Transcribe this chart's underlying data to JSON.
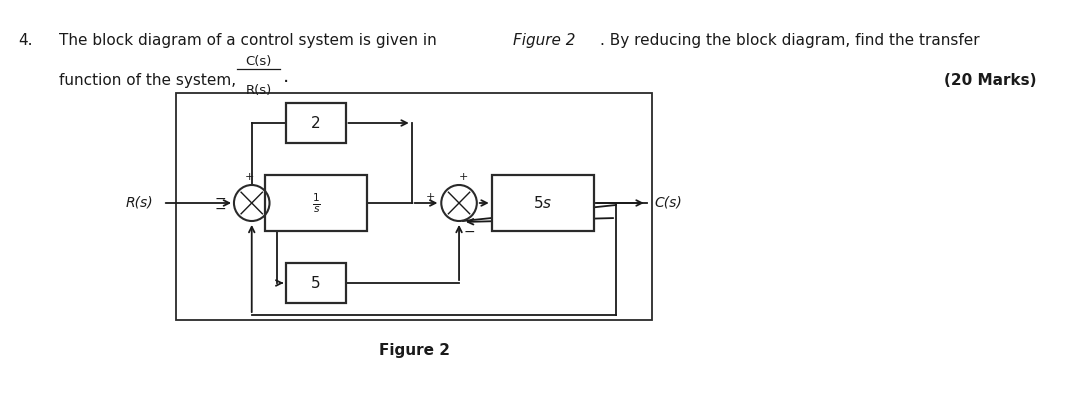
{
  "title_text": "The block diagram of a control system is given in",
  "title_italic": "Figure 2",
  "title_text2": ". By reducing the block diagram, find the transfer",
  "question_num": "4.",
  "func_text": "function of the system,",
  "marks_text": "(20 Marks)",
  "figure_label": "Figure 2",
  "block1_label": "2",
  "block2_label": "1/s",
  "block3_label": "5",
  "block4_label": "5s",
  "Rs_label": "R(s)",
  "Cs_label": "C(s)",
  "bg_color": "#ffffff",
  "line_color": "#1a1a1a",
  "block_face": "#ffffff",
  "block_edge": "#2a2a2a",
  "text_color": "#1a1a1a",
  "fig_width": 10.8,
  "fig_height": 4.05,
  "dpi": 100
}
